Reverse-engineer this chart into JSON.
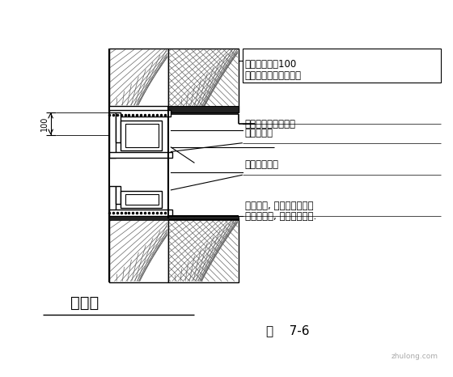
{
  "bg_color": "#ffffff",
  "lc": "#000000",
  "title": "平窗口",
  "fig_label": "图    7-6",
  "dim_text": "100",
  "watermark": "zhulong.com",
  "ann1a": "翻边网格布宽100",
  "ann1b": "墙面标准网铺至窗根部",
  "ann2": "铝塑或铝合金滴水槽",
  "ann3": "密封膏嵌缝",
  "ann4": "保温材料填充",
  "ann5a": "角钢支架, 锚固在结构墙体",
  "ann5b": "长度为窗长, 应经防锈处理."
}
